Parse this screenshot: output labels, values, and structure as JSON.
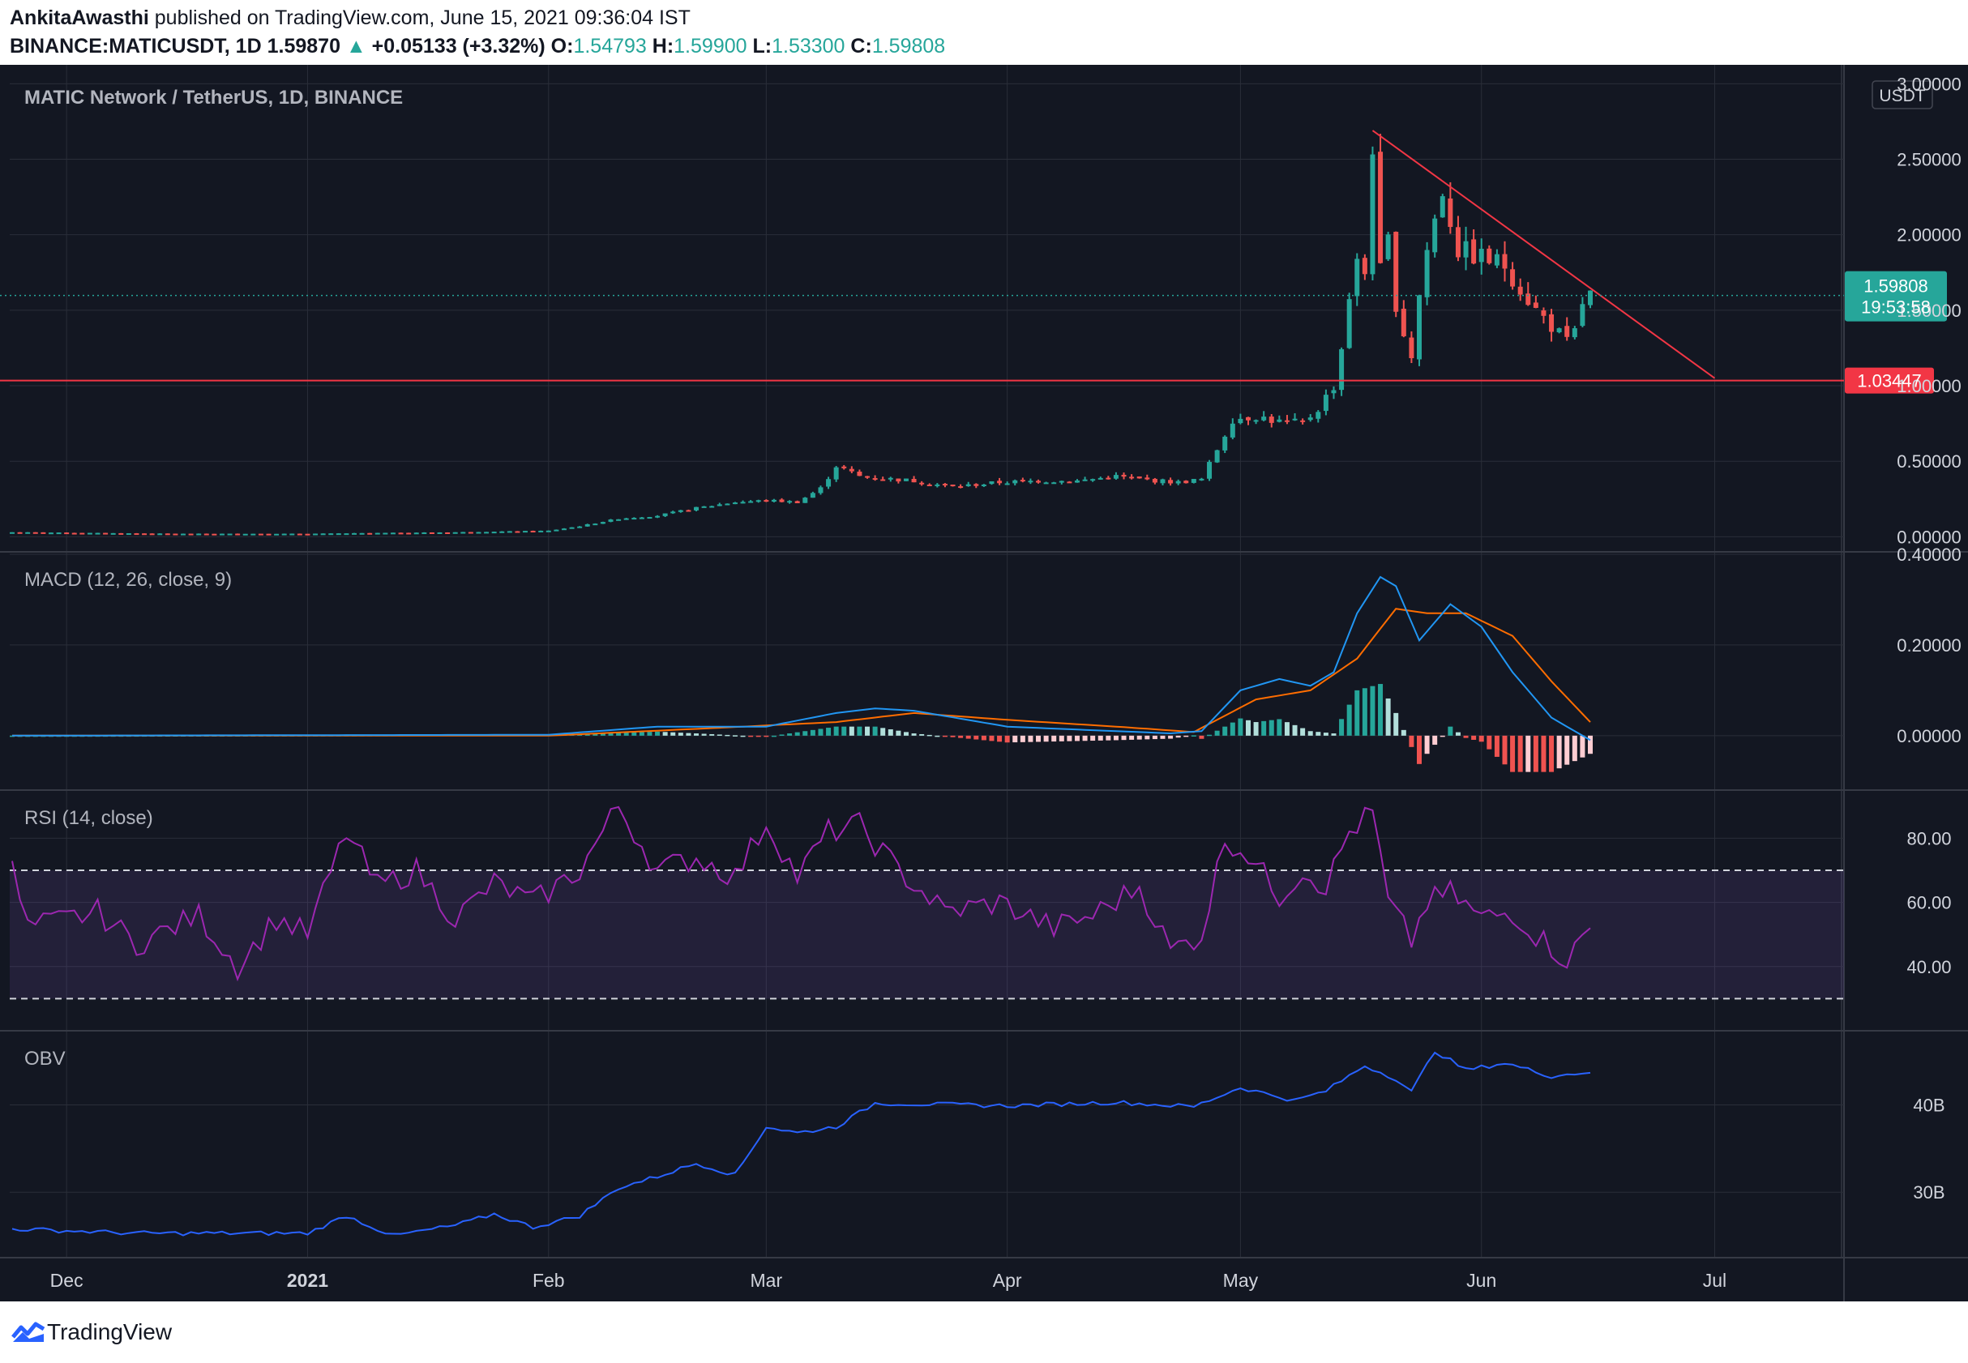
{
  "header": {
    "author": "AnkitaAwasthi",
    "published_text": " published on TradingView.com, June 15, 2021 09:36:04 IST",
    "symbol": "BINANCE:MATICUSDT, 1D",
    "last": "1.59870",
    "change": "+0.05133 (+3.32%)",
    "o_label": "O:",
    "o": "1.54793",
    "h_label": "H:",
    "h": "1.59900",
    "l_label": "L:",
    "l": "1.53300",
    "c_label": "C:",
    "c": "1.59808"
  },
  "footer": {
    "brand": "TradingView"
  },
  "colors": {
    "background": "#131722",
    "grid": "#2a2e39",
    "up": "#26a69a",
    "down": "#ef5350",
    "macd": "#2196f3",
    "signal": "#ff6d00",
    "rsi": "#9c27b0",
    "obv": "#2962ff",
    "hline": "#f23645",
    "trendline": "#f23645"
  },
  "chart_data": [
    {
      "type": "candlestick",
      "title": "MATIC Network / TetherUS, 1D, BINANCE",
      "unit_label": "USDT",
      "y_ticks": [
        "3.00000",
        "2.50000",
        "2.00000",
        "1.50000",
        "1.00000",
        "0.50000",
        "0.00000"
      ],
      "ylim": [
        -0.1,
        3.05
      ],
      "last_price_label": "1.59808",
      "countdown_label": "19:53:58",
      "horizontal_line": {
        "value": 1.03447,
        "label": "1.03447"
      },
      "trendline": {
        "from": [
          "2021-05-18",
          2.69
        ],
        "to": [
          "2021-07-01",
          1.05
        ]
      },
      "anchors": [
        [
          "2020-11-24",
          0.03
        ],
        [
          "2020-12-15",
          0.02
        ],
        [
          "2021-01-01",
          0.02
        ],
        [
          "2021-01-10",
          0.025
        ],
        [
          "2021-01-20",
          0.03
        ],
        [
          "2021-02-01",
          0.04
        ],
        [
          "2021-02-05",
          0.07
        ],
        [
          "2021-02-10",
          0.12
        ],
        [
          "2021-02-15",
          0.14
        ],
        [
          "2021-02-20",
          0.19
        ],
        [
          "2021-02-25",
          0.23
        ],
        [
          "2021-03-01",
          0.24
        ],
        [
          "2021-03-05",
          0.23
        ],
        [
          "2021-03-08",
          0.32
        ],
        [
          "2021-03-10",
          0.47
        ],
        [
          "2021-03-13",
          0.4
        ],
        [
          "2021-03-20",
          0.37
        ],
        [
          "2021-03-25",
          0.33
        ],
        [
          "2021-03-31",
          0.36
        ],
        [
          "2021-04-05",
          0.37
        ],
        [
          "2021-04-10",
          0.37
        ],
        [
          "2021-04-15",
          0.4
        ],
        [
          "2021-04-18",
          0.38
        ],
        [
          "2021-04-23",
          0.36
        ],
        [
          "2021-04-26",
          0.38
        ],
        [
          "2021-04-28",
          0.58
        ],
        [
          "2021-04-30",
          0.78
        ],
        [
          "2021-05-03",
          0.8
        ],
        [
          "2021-05-06",
          0.76
        ],
        [
          "2021-05-09",
          0.75
        ],
        [
          "2021-05-11",
          0.85
        ],
        [
          "2021-05-13",
          1.0
        ],
        [
          "2021-05-14",
          1.25
        ],
        [
          "2021-05-15",
          1.6
        ],
        [
          "2021-05-16",
          1.8
        ],
        [
          "2021-05-17",
          1.75
        ],
        [
          "2021-05-18",
          2.6
        ],
        [
          "2021-05-19",
          1.75
        ],
        [
          "2021-05-20",
          1.95
        ],
        [
          "2021-05-21",
          1.55
        ],
        [
          "2021-05-22",
          1.35
        ],
        [
          "2021-05-23",
          1.2
        ],
        [
          "2021-05-24",
          1.6
        ],
        [
          "2021-05-25",
          1.9
        ],
        [
          "2021-05-27",
          2.3
        ],
        [
          "2021-05-29",
          1.9
        ],
        [
          "2021-06-01",
          1.85
        ],
        [
          "2021-06-04",
          1.8
        ],
        [
          "2021-06-06",
          1.65
        ],
        [
          "2021-06-08",
          1.5
        ],
        [
          "2021-06-10",
          1.4
        ],
        [
          "2021-06-12",
          1.28
        ],
        [
          "2021-06-13",
          1.35
        ],
        [
          "2021-06-14",
          1.55
        ],
        [
          "2021-06-15",
          1.598
        ]
      ]
    },
    {
      "type": "line",
      "title": "MACD (12, 26, close, 9)",
      "y_ticks": [
        "0.40000",
        "0.20000",
        "0.00000"
      ],
      "ylim": [
        -0.12,
        0.4
      ],
      "macd_anchors": [
        [
          "2020-11-24",
          0.0
        ],
        [
          "2021-02-01",
          0.002
        ],
        [
          "2021-02-15",
          0.02
        ],
        [
          "2021-03-01",
          0.02
        ],
        [
          "2021-03-10",
          0.05
        ],
        [
          "2021-03-15",
          0.06
        ],
        [
          "2021-03-20",
          0.055
        ],
        [
          "2021-04-01",
          0.02
        ],
        [
          "2021-04-15",
          0.01
        ],
        [
          "2021-04-22",
          0.005
        ],
        [
          "2021-04-26",
          0.01
        ],
        [
          "2021-05-01",
          0.1
        ],
        [
          "2021-05-06",
          0.125
        ],
        [
          "2021-05-10",
          0.11
        ],
        [
          "2021-05-13",
          0.14
        ],
        [
          "2021-05-16",
          0.27
        ],
        [
          "2021-05-19",
          0.35
        ],
        [
          "2021-05-21",
          0.33
        ],
        [
          "2021-05-24",
          0.21
        ],
        [
          "2021-05-28",
          0.29
        ],
        [
          "2021-06-01",
          0.24
        ],
        [
          "2021-06-05",
          0.14
        ],
        [
          "2021-06-10",
          0.04
        ],
        [
          "2021-06-15",
          -0.01
        ]
      ],
      "signal_anchors": [
        [
          "2020-11-24",
          0.0
        ],
        [
          "2021-02-01",
          0.0
        ],
        [
          "2021-02-20",
          0.015
        ],
        [
          "2021-03-10",
          0.03
        ],
        [
          "2021-03-20",
          0.05
        ],
        [
          "2021-04-01",
          0.035
        ],
        [
          "2021-04-15",
          0.02
        ],
        [
          "2021-04-25",
          0.008
        ],
        [
          "2021-05-03",
          0.08
        ],
        [
          "2021-05-10",
          0.1
        ],
        [
          "2021-05-16",
          0.17
        ],
        [
          "2021-05-21",
          0.28
        ],
        [
          "2021-05-25",
          0.27
        ],
        [
          "2021-05-30",
          0.27
        ],
        [
          "2021-06-05",
          0.22
        ],
        [
          "2021-06-10",
          0.12
        ],
        [
          "2021-06-15",
          0.03
        ]
      ]
    },
    {
      "type": "line",
      "title": "RSI (14, close)",
      "y_ticks": [
        "80.00",
        "60.00",
        "40.00"
      ],
      "ylim": [
        20,
        95
      ],
      "bands": [
        30,
        70
      ],
      "anchors": [
        [
          "2020-11-24",
          70
        ],
        [
          "2020-11-26",
          52
        ],
        [
          "2020-12-05",
          57
        ],
        [
          "2020-12-10",
          47
        ],
        [
          "2020-12-18",
          56
        ],
        [
          "2020-12-23",
          40
        ],
        [
          "2020-12-28",
          55
        ],
        [
          "2021-01-01",
          50
        ],
        [
          "2021-01-06",
          82
        ],
        [
          "2021-01-10",
          65
        ],
        [
          "2021-01-15",
          70
        ],
        [
          "2021-01-20",
          55
        ],
        [
          "2021-01-25",
          66
        ],
        [
          "2021-01-30",
          60
        ],
        [
          "2021-02-05",
          70
        ],
        [
          "2021-02-10",
          90
        ],
        [
          "2021-02-15",
          70
        ],
        [
          "2021-02-20",
          74
        ],
        [
          "2021-02-25",
          68
        ],
        [
          "2021-03-01",
          85
        ],
        [
          "2021-03-05",
          68
        ],
        [
          "2021-03-09",
          82
        ],
        [
          "2021-03-13",
          84
        ],
        [
          "2021-03-18",
          70
        ],
        [
          "2021-03-24",
          57
        ],
        [
          "2021-03-31",
          60
        ],
        [
          "2021-04-07",
          52
        ],
        [
          "2021-04-12",
          56
        ],
        [
          "2021-04-18",
          65
        ],
        [
          "2021-04-22",
          45
        ],
        [
          "2021-04-26",
          50
        ],
        [
          "2021-04-29",
          80
        ],
        [
          "2021-05-02",
          75
        ],
        [
          "2021-05-06",
          62
        ],
        [
          "2021-05-09",
          70
        ],
        [
          "2021-05-12",
          65
        ],
        [
          "2021-05-15",
          82
        ],
        [
          "2021-05-18",
          88
        ],
        [
          "2021-05-20",
          60
        ],
        [
          "2021-05-23",
          48
        ],
        [
          "2021-05-25",
          60
        ],
        [
          "2021-05-28",
          63
        ],
        [
          "2021-06-01",
          55
        ],
        [
          "2021-06-05",
          57
        ],
        [
          "2021-06-08",
          50
        ],
        [
          "2021-06-12",
          42
        ],
        [
          "2021-06-15",
          52
        ]
      ]
    },
    {
      "type": "line",
      "title": "OBV",
      "y_ticks": [
        "40B",
        "30B"
      ],
      "ylim": [
        22.5,
        48.5
      ],
      "anchors": [
        [
          "2020-11-24",
          25.8
        ],
        [
          "2020-12-10",
          25.3
        ],
        [
          "2021-01-01",
          25.3
        ],
        [
          "2021-01-06",
          27.3
        ],
        [
          "2021-01-12",
          25.0
        ],
        [
          "2021-01-20",
          26.2
        ],
        [
          "2021-01-25",
          27.5
        ],
        [
          "2021-01-30",
          26.0
        ],
        [
          "2021-02-05",
          27.3
        ],
        [
          "2021-02-10",
          30.5
        ],
        [
          "2021-02-15",
          31.8
        ],
        [
          "2021-02-20",
          33.3
        ],
        [
          "2021-02-25",
          32.0
        ],
        [
          "2021-03-01",
          37.5
        ],
        [
          "2021-03-05",
          36.8
        ],
        [
          "2021-03-10",
          37.5
        ],
        [
          "2021-03-15",
          40.2
        ],
        [
          "2021-04-01",
          39.9
        ],
        [
          "2021-04-15",
          40.3
        ],
        [
          "2021-04-25",
          39.8
        ],
        [
          "2021-05-01",
          42.0
        ],
        [
          "2021-05-08",
          40.5
        ],
        [
          "2021-05-12",
          41.6
        ],
        [
          "2021-05-17",
          44.5
        ],
        [
          "2021-05-21",
          43.0
        ],
        [
          "2021-05-23",
          41.5
        ],
        [
          "2021-05-26",
          46.2
        ],
        [
          "2021-05-30",
          44.0
        ],
        [
          "2021-06-04",
          44.8
        ],
        [
          "2021-06-10",
          43.3
        ],
        [
          "2021-06-15",
          43.8
        ]
      ]
    }
  ],
  "x_axis": {
    "labels": [
      "Dec",
      "2021",
      "Feb",
      "Mar",
      "Apr",
      "May",
      "Jun",
      "Jul"
    ],
    "dates": [
      "2020-12-01",
      "2021-01-01",
      "2021-02-01",
      "2021-03-01",
      "2021-04-01",
      "2021-05-01",
      "2021-06-01",
      "2021-07-01"
    ]
  }
}
